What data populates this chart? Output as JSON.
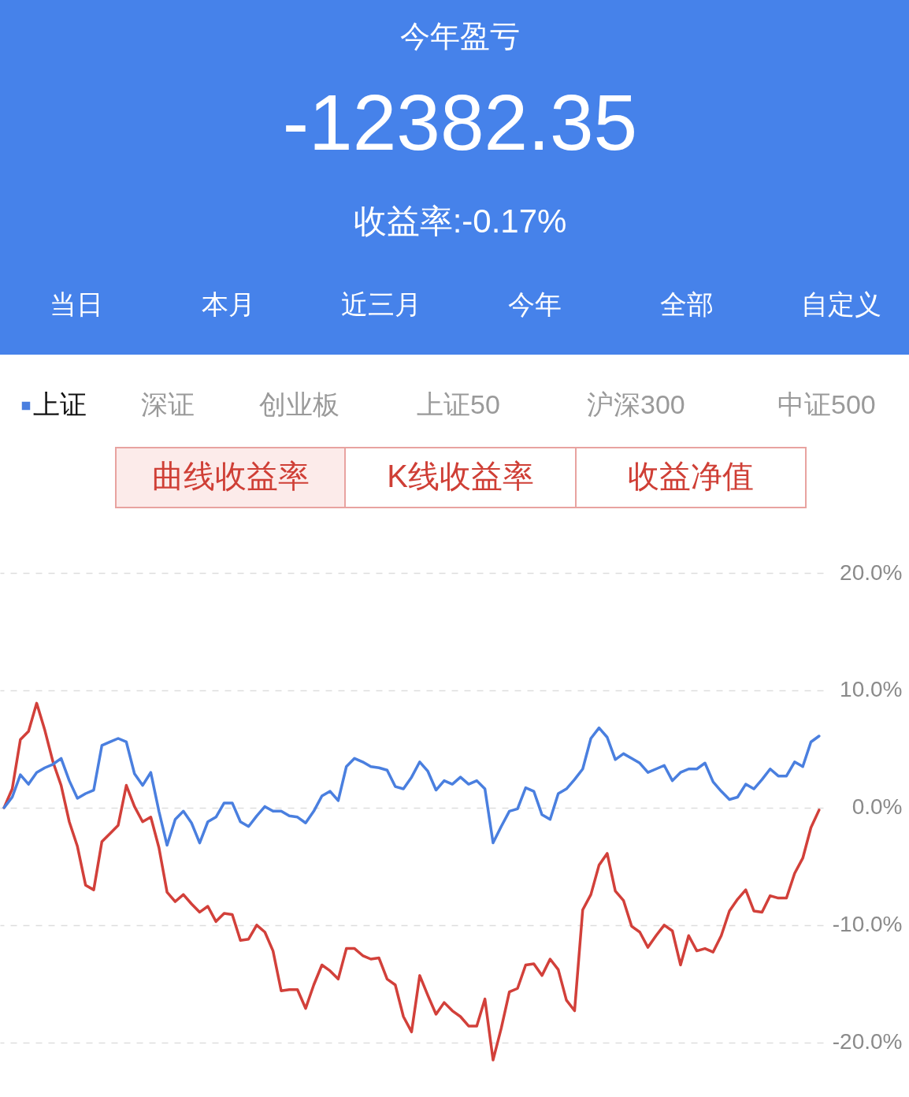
{
  "chart_data": {
    "type": "line",
    "title": "今年盈亏",
    "subtitle": "-12382.35",
    "annotations": [
      "收益率:-0.17%",
      "当日",
      "本月",
      "近三月",
      "今年",
      "全部",
      "自定义",
      "深证",
      "创业板",
      "上证50",
      "沪深300",
      "中证500",
      "曲线收益率",
      "K线收益率",
      "收益净值"
    ],
    "categories": [
      null,
      null,
      null,
      null,
      null,
      null,
      null,
      null,
      null,
      null,
      null,
      null,
      null,
      null,
      null,
      null,
      null,
      null,
      null,
      null,
      null,
      null,
      null,
      null,
      null,
      null,
      null,
      null,
      null,
      null,
      null,
      null,
      null,
      null,
      null,
      null,
      null,
      null,
      null,
      null,
      null,
      null,
      null,
      null,
      null,
      null,
      null,
      null,
      null,
      null,
      null,
      null,
      null,
      null,
      null,
      null,
      null,
      null,
      null,
      null,
      null,
      null,
      null,
      null,
      null,
      null,
      null,
      null,
      null,
      null,
      null,
      null,
      null,
      null,
      null,
      null,
      null,
      null,
      null,
      null,
      null,
      null,
      null,
      null,
      null,
      null,
      null,
      null,
      null,
      null,
      null,
      null,
      null,
      null,
      null,
      null,
      null,
      null,
      null,
      null,
      null
    ],
    "series": [
      {
        "color": "#d2403a",
        "values": [
          0,
          1.6,
          5.8,
          6.5,
          8.9,
          6.6,
          3.9,
          1.9,
          -1.2,
          -3.3,
          -6.6,
          -7.0,
          -2.9,
          -2.2,
          -1.5,
          1.9,
          0.1,
          -1.2,
          -0.8,
          -3.4,
          -7.2,
          -8.0,
          -7.4,
          -8.2,
          -8.9,
          -8.4,
          -9.7,
          -9.0,
          -9.1,
          -11.3,
          -11.2,
          -10.0,
          -10.6,
          -12.2,
          -15.6,
          -15.5,
          -15.5,
          -17.1,
          -15.1,
          -13.4,
          -13.9,
          -14.6,
          -12.0,
          -12.0,
          -12.6,
          -12.9,
          -12.8,
          -14.6,
          -15.1,
          -17.8,
          -19.1,
          -14.3,
          -16.0,
          -17.6,
          -16.6,
          -17.3,
          -17.8,
          -18.6,
          -18.6,
          -16.3,
          -21.5,
          -18.8,
          -15.7,
          -15.4,
          -13.4,
          -13.3,
          -14.3,
          -12.9,
          -13.8,
          -16.4,
          -17.3,
          -8.7,
          -7.4,
          -4.9,
          -3.9,
          -7.1,
          -7.9,
          -10.1,
          -10.6,
          -11.9,
          -10.9,
          -10.0,
          -10.5,
          -13.4,
          -10.9,
          -12.2,
          -12.0,
          -12.3,
          -10.9,
          -8.8,
          -7.8,
          -7.0,
          -8.8,
          -8.9,
          -7.5,
          -7.7,
          -7.7,
          -5.6,
          -4.3,
          -1.7,
          -0.2
        ]
      },
      {
        "name": "上证",
        "color": "#4a7fdf",
        "values": [
          0,
          0.9,
          2.8,
          2.0,
          3.0,
          3.4,
          3.7,
          4.2,
          2.3,
          0.8,
          1.2,
          1.5,
          5.3,
          5.6,
          5.9,
          5.6,
          2.9,
          1.9,
          3.0,
          -0.3,
          -3.2,
          -1.0,
          -0.3,
          -1.3,
          -3.0,
          -1.2,
          -0.8,
          0.4,
          0.4,
          -1.2,
          -1.6,
          -0.7,
          0.1,
          -0.3,
          -0.3,
          -0.7,
          -0.8,
          -1.3,
          -0.3,
          1.0,
          1.4,
          0.6,
          3.5,
          4.2,
          3.9,
          3.5,
          3.4,
          3.2,
          1.8,
          1.6,
          2.6,
          3.9,
          3.1,
          1.5,
          2.3,
          2.0,
          2.6,
          2.0,
          2.3,
          1.6,
          -3.0,
          -1.6,
          -0.3,
          -0.1,
          1.7,
          1.4,
          -0.6,
          -1.0,
          1.2,
          1.6,
          2.4,
          3.3,
          5.9,
          6.8,
          6.0,
          4.1,
          4.6,
          4.2,
          3.8,
          3.0,
          3.3,
          3.6,
          2.3,
          3.0,
          3.3,
          3.3,
          3.8,
          2.2,
          1.4,
          0.7,
          0.9,
          2.0,
          1.6,
          2.4,
          3.3,
          2.7,
          2.7,
          3.9,
          3.5,
          5.6,
          6.1
        ]
      }
    ],
    "ylim": [
      -22.5,
      20
    ],
    "yticks": [
      {
        "value": 20,
        "label": "20.0%"
      },
      {
        "value": 10,
        "label": "10.0%"
      },
      {
        "value": 0,
        "label": "0.0%"
      },
      {
        "value": -10,
        "label": "-10.0%"
      },
      {
        "value": -20,
        "label": "-20.0%"
      }
    ],
    "grid": "y",
    "legend": "top",
    "tick_labels": "y",
    "line_style": "solid"
  }
}
